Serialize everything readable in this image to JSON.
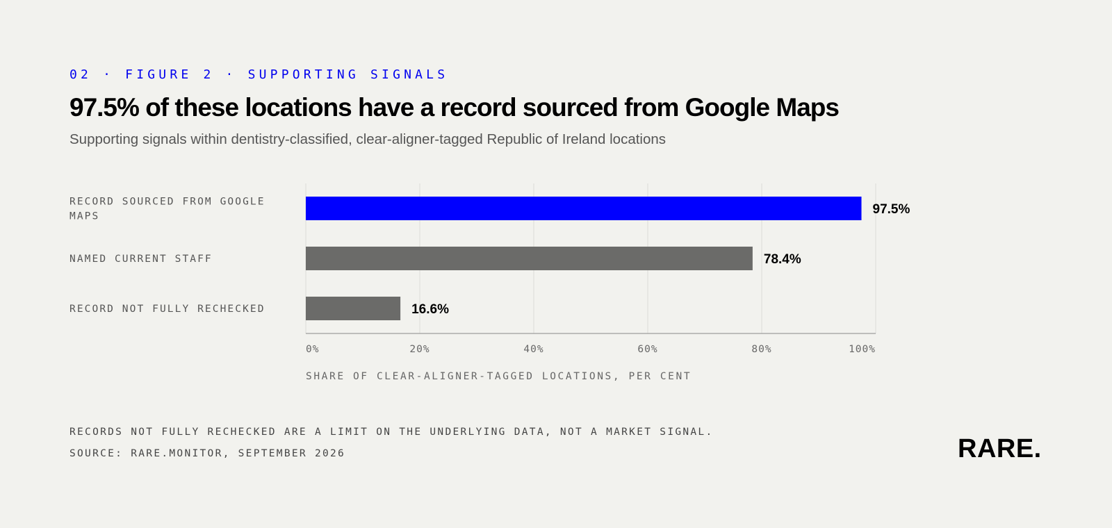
{
  "header": {
    "kicker": "02 · FIGURE 2 · SUPPORTING SIGNALS",
    "title": "97.5% of these locations have a record sourced from Google Maps",
    "subtitle": "Supporting signals within dentistry-classified, clear-aligner-tagged Republic of Ireland locations"
  },
  "chart_data": {
    "type": "bar",
    "orientation": "horizontal",
    "categories": [
      "RECORD SOURCED FROM GOOGLE MAPS",
      "NAMED CURRENT STAFF",
      "RECORD NOT FULLY RECHECKED"
    ],
    "values": [
      97.5,
      78.4,
      16.6
    ],
    "value_labels": [
      "97.5%",
      "78.4%",
      "16.6%"
    ],
    "colors": [
      "#0000ff",
      "#6b6b69",
      "#6b6b69"
    ],
    "xlabel": "SHARE OF CLEAR-ALIGNER-TAGGED LOCATIONS, PER CENT",
    "xlim": [
      0,
      100
    ],
    "xticks": [
      0,
      20,
      40,
      60,
      80,
      100
    ],
    "xtick_labels": [
      "0%",
      "20%",
      "40%",
      "60%",
      "80%",
      "100%"
    ],
    "grid": true
  },
  "footer": {
    "note": "RECORDS NOT FULLY RECHECKED ARE A LIMIT ON THE UNDERLYING DATA, NOT A MARKET SIGNAL.",
    "source": "SOURCE: RARE.MONITOR, SEPTEMBER 2026",
    "logo": "RARE."
  }
}
